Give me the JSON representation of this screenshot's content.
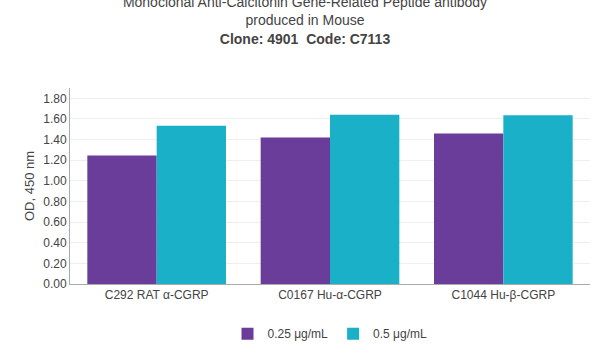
{
  "chart_data": {
    "type": "bar",
    "title": "Monoclonal Anti-Calcitonin Gene-Related Peptide antibody\nproduced in Mouse",
    "subtitle": "Clone: 4901  Code: C7113",
    "categories": [
      "C292 RAT α-CGRP",
      "C0167 Hu-α-CGRP",
      "C1044 Hu-β-CGRP"
    ],
    "series": [
      {
        "name": "0.25 μg/mL",
        "color": "#6a3d9a",
        "values": [
          1.245,
          1.42,
          1.46
        ]
      },
      {
        "name": "0.5 μg/mL",
        "color": "#1ab0c8",
        "values": [
          1.535,
          1.64,
          1.635
        ]
      }
    ],
    "ylabel": "OD, 450 nm",
    "ylim": [
      0.0,
      1.9
    ],
    "yticks": [
      {
        "value": 0.0,
        "label": "0.00"
      },
      {
        "value": 0.2,
        "label": "0.20"
      },
      {
        "value": 0.4,
        "label": "0.40"
      },
      {
        "value": 0.6,
        "label": "0.60"
      },
      {
        "value": 0.8,
        "label": "0.80"
      },
      {
        "value": 1.0,
        "label": "1.00"
      },
      {
        "value": 1.2,
        "label": "1.20"
      },
      {
        "value": 1.4,
        "label": "1.40"
      },
      {
        "value": 1.6,
        "label": "1.60"
      },
      {
        "value": 1.8,
        "label": "1.80"
      }
    ],
    "grid": true,
    "legend": "bottom"
  }
}
